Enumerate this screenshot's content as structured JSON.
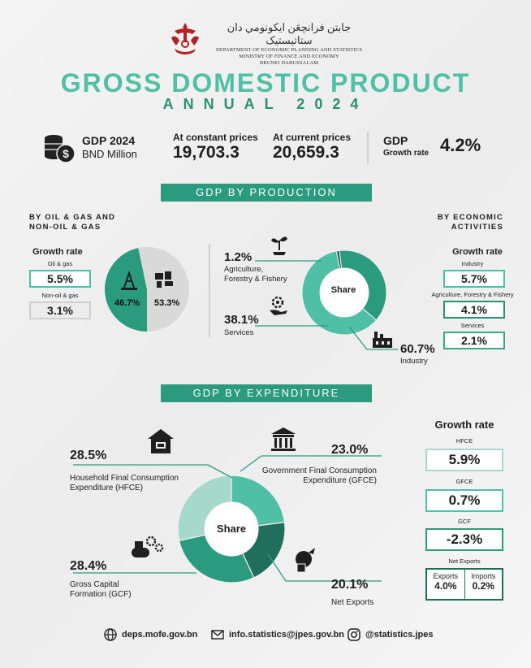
{
  "header": {
    "jawi": "جابتن فرانچڠن ايكونومي دان ستاتيستيک",
    "line1": "DEPARTMENT OF ECONOMIC PLANNING AND STATISTICS",
    "line2": "MINISTRY OF FINANCE AND ECONOMY",
    "line3": "BRUNEI DARUSSALAM",
    "title": "GROSS DOMESTIC PRODUCT",
    "subtitle": "ANNUAL 2024"
  },
  "summary": {
    "gdp_label": "GDP 2024",
    "gdp_unit": "BND Million",
    "constant_label": "At constant prices",
    "constant_value": "19,703.3",
    "current_label": "At current prices",
    "current_value": "20,659.3",
    "growth_label1": "GDP",
    "growth_label2": "Growth rate",
    "growth_value": "4.2%"
  },
  "production": {
    "banner": "GDP BY PRODUCTION",
    "left_head1": "BY OIL & GAS AND",
    "left_head2": "NON-OIL & GAS",
    "right_head1": "BY ECONOMIC",
    "right_head2": "ACTIVITIES",
    "growth_rate_label": "Growth rate",
    "oil_label": "Oil & gas",
    "oil_value": "5.5%",
    "nonoil_label": "Non-oil & gas",
    "nonoil_value": "3.1%",
    "pie_oil_pct": "46.7%",
    "pie_nonoil_pct": "53.3%",
    "pie_oil_share": 46.7,
    "pie_nonoil_share": 53.3,
    "agri_pct": "1.2%",
    "agri_label1": "Agriculture,",
    "agri_label2": "Forestry & Fishery",
    "services_pct": "38.1%",
    "services_label": "Services",
    "industry_pct": "60.7%",
    "industry_label": "Industry",
    "share_label": "Share",
    "donut_shares": [
      1.2,
      38.1,
      60.7
    ],
    "activity_growth": [
      {
        "label": "Industry",
        "value": "5.7%"
      },
      {
        "label": "Agriculture, Forestry & Fishery",
        "value": "4.1%"
      },
      {
        "label": "Services",
        "value": "2.1%"
      }
    ]
  },
  "expenditure": {
    "banner": "GDP BY EXPENDITURE",
    "share_label": "Share",
    "hfce_pct": "28.5%",
    "hfce_label1": "Household Final Consumption",
    "hfce_label2": "Expenditure (HFCE)",
    "gfce_pct": "23.0%",
    "gfce_label1": "Government Final Consumption",
    "gfce_label2": "Expenditure (GFCE)",
    "gcf_pct": "28.4%",
    "gcf_label1": "Gross Capital",
    "gcf_label2": "Formation (GCF)",
    "nx_pct": "20.1%",
    "nx_label": "Net Exports",
    "donut_shares": [
      23.0,
      20.1,
      28.4,
      28.5
    ],
    "growth_rate_label": "Growth rate",
    "hfce_g_label": "HFCE",
    "hfce_g": "5.9%",
    "gfce_g_label": "GFCE",
    "gfce_g": "0.7%",
    "gcf_g_label": "GCF",
    "gcf_g": "-2.3%",
    "nx_g_label": "Net Exports",
    "exports_label": "Exports",
    "exports_value": "4.0%",
    "imports_label": "Imports",
    "imports_value": "0.2%"
  },
  "footer": {
    "website": "deps.mofe.gov.bn",
    "email": "info.statistics@jpes.gov.bn",
    "instagram": "@statistics.jpes"
  },
  "colors": {
    "teal_light": "#4fc0a6",
    "teal": "#2b9b80",
    "teal_dark": "#1f6f5c",
    "teal_pale": "#a6d9cc",
    "gray": "#d9d9d9"
  }
}
